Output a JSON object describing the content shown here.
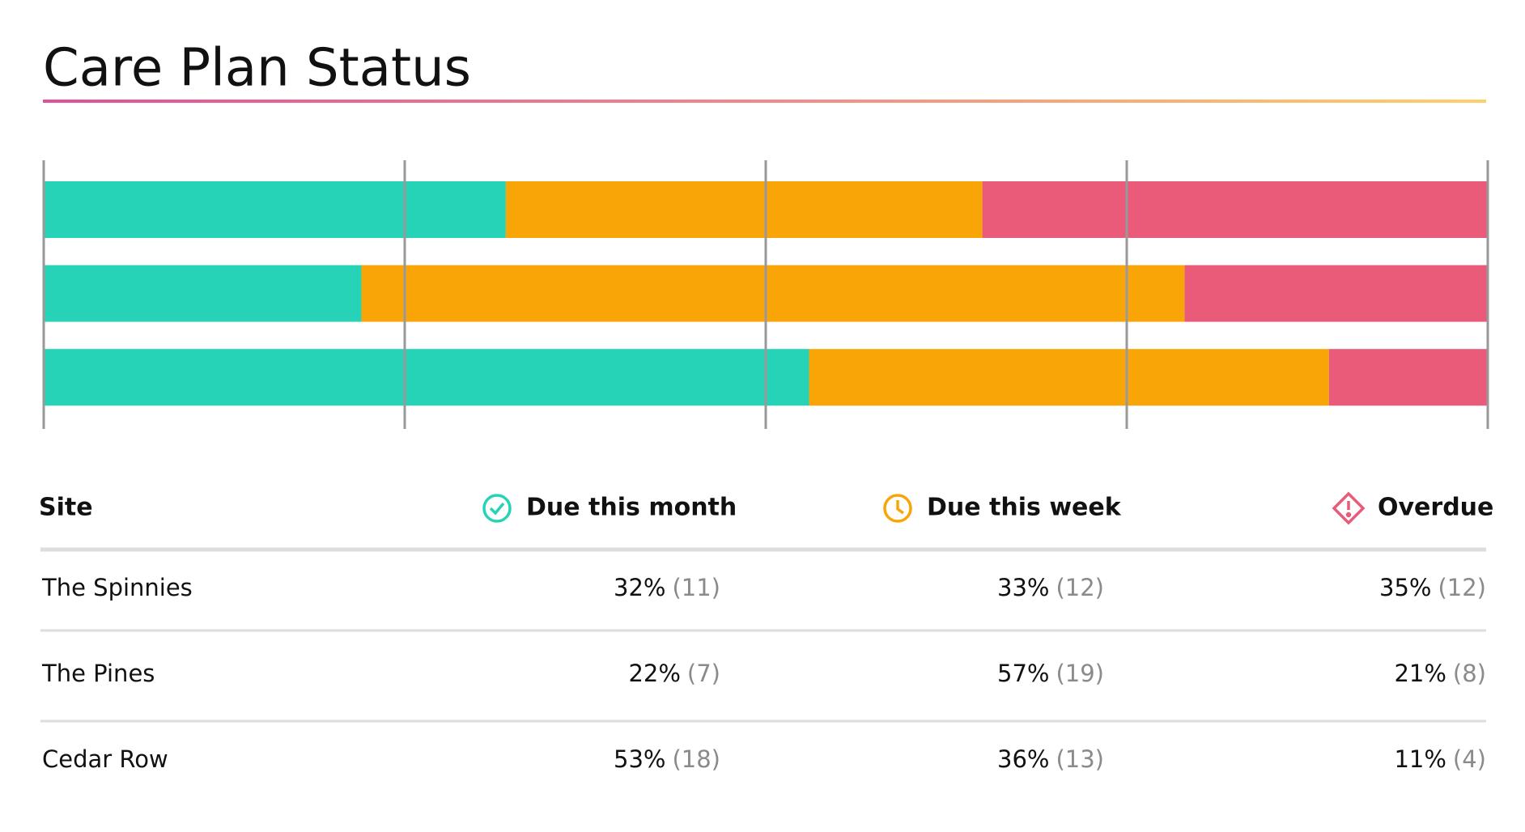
{
  "chart_data": {
    "type": "bar",
    "orientation": "horizontal",
    "stacked": true,
    "title": "Care Plan Status",
    "category_label": "Site",
    "categories": [
      "The Spinnies",
      "The Pines",
      "Cedar Row"
    ],
    "xlim": [
      0,
      100
    ],
    "xticks": [
      0,
      25,
      50,
      75,
      100
    ],
    "series": [
      {
        "name": "Due this month",
        "color": "#26d3b6",
        "values": [
          32,
          22,
          53
        ],
        "value_labels": [
          "32%",
          "22%",
          "53%"
        ],
        "count_labels": [
          "(11)",
          "(7)",
          "(18)"
        ]
      },
      {
        "name": "Due this week",
        "color": "#f9a507",
        "values": [
          33,
          57,
          36
        ],
        "value_labels": [
          "33%",
          "57%",
          "36%"
        ],
        "count_labels": [
          "(12)",
          "(19)",
          "(13)"
        ]
      },
      {
        "name": "Overdue",
        "color": "#e95b78",
        "values": [
          35,
          21,
          11
        ],
        "value_labels": [
          "35%",
          "21%",
          "11%"
        ],
        "count_labels": [
          "(12)",
          "(8)",
          "(4)"
        ]
      }
    ]
  }
}
